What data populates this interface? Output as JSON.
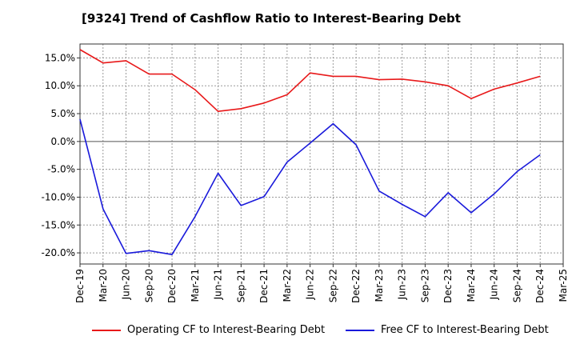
{
  "chart_data": {
    "type": "line",
    "title": "[9324]  Trend of Cashflow Ratio to Interest-Bearing Debt",
    "xlabel": "",
    "ylabel": "",
    "x": [
      "Dec-19",
      "Mar-20",
      "Jun-20",
      "Sep-20",
      "Dec-20",
      "Mar-21",
      "Jun-21",
      "Sep-21",
      "Dec-21",
      "Mar-22",
      "Jun-22",
      "Sep-22",
      "Dec-22",
      "Mar-23",
      "Jun-23",
      "Sep-23",
      "Dec-23",
      "Mar-24",
      "Jun-24",
      "Sep-24",
      "Dec-24",
      "Mar-25"
    ],
    "ylim": [
      -22,
      17.5
    ],
    "yticks": [
      15,
      10,
      5,
      0,
      -5,
      -10,
      -15,
      -20
    ],
    "ytick_labels": [
      "15.0%",
      "10.0%",
      "5.0%",
      "0.0%",
      "-5.0%",
      "-10.0%",
      "-15.0%",
      "-20.0%"
    ],
    "grid": true,
    "legend_position": "bottom",
    "series": [
      {
        "name": "Operating CF to Interest-Bearing Debt",
        "color": "#e8191a",
        "values": [
          16.5,
          14.1,
          14.5,
          12.1,
          12.1,
          9.3,
          5.4,
          5.9,
          6.9,
          8.4,
          12.3,
          11.7,
          11.7,
          11.1,
          11.2,
          10.7,
          10.0,
          7.7,
          9.4,
          10.5,
          11.7,
          null
        ]
      },
      {
        "name": "Free CF to Interest-Bearing Debt",
        "color": "#1a1adb",
        "values": [
          4.0,
          -12.1,
          -20.1,
          -19.6,
          -20.3,
          -13.5,
          -5.7,
          -11.5,
          -9.9,
          -3.7,
          -0.3,
          3.2,
          -0.6,
          -8.9,
          -11.3,
          -13.5,
          -9.2,
          -12.8,
          -9.4,
          -5.4,
          -2.4,
          null
        ]
      }
    ]
  }
}
